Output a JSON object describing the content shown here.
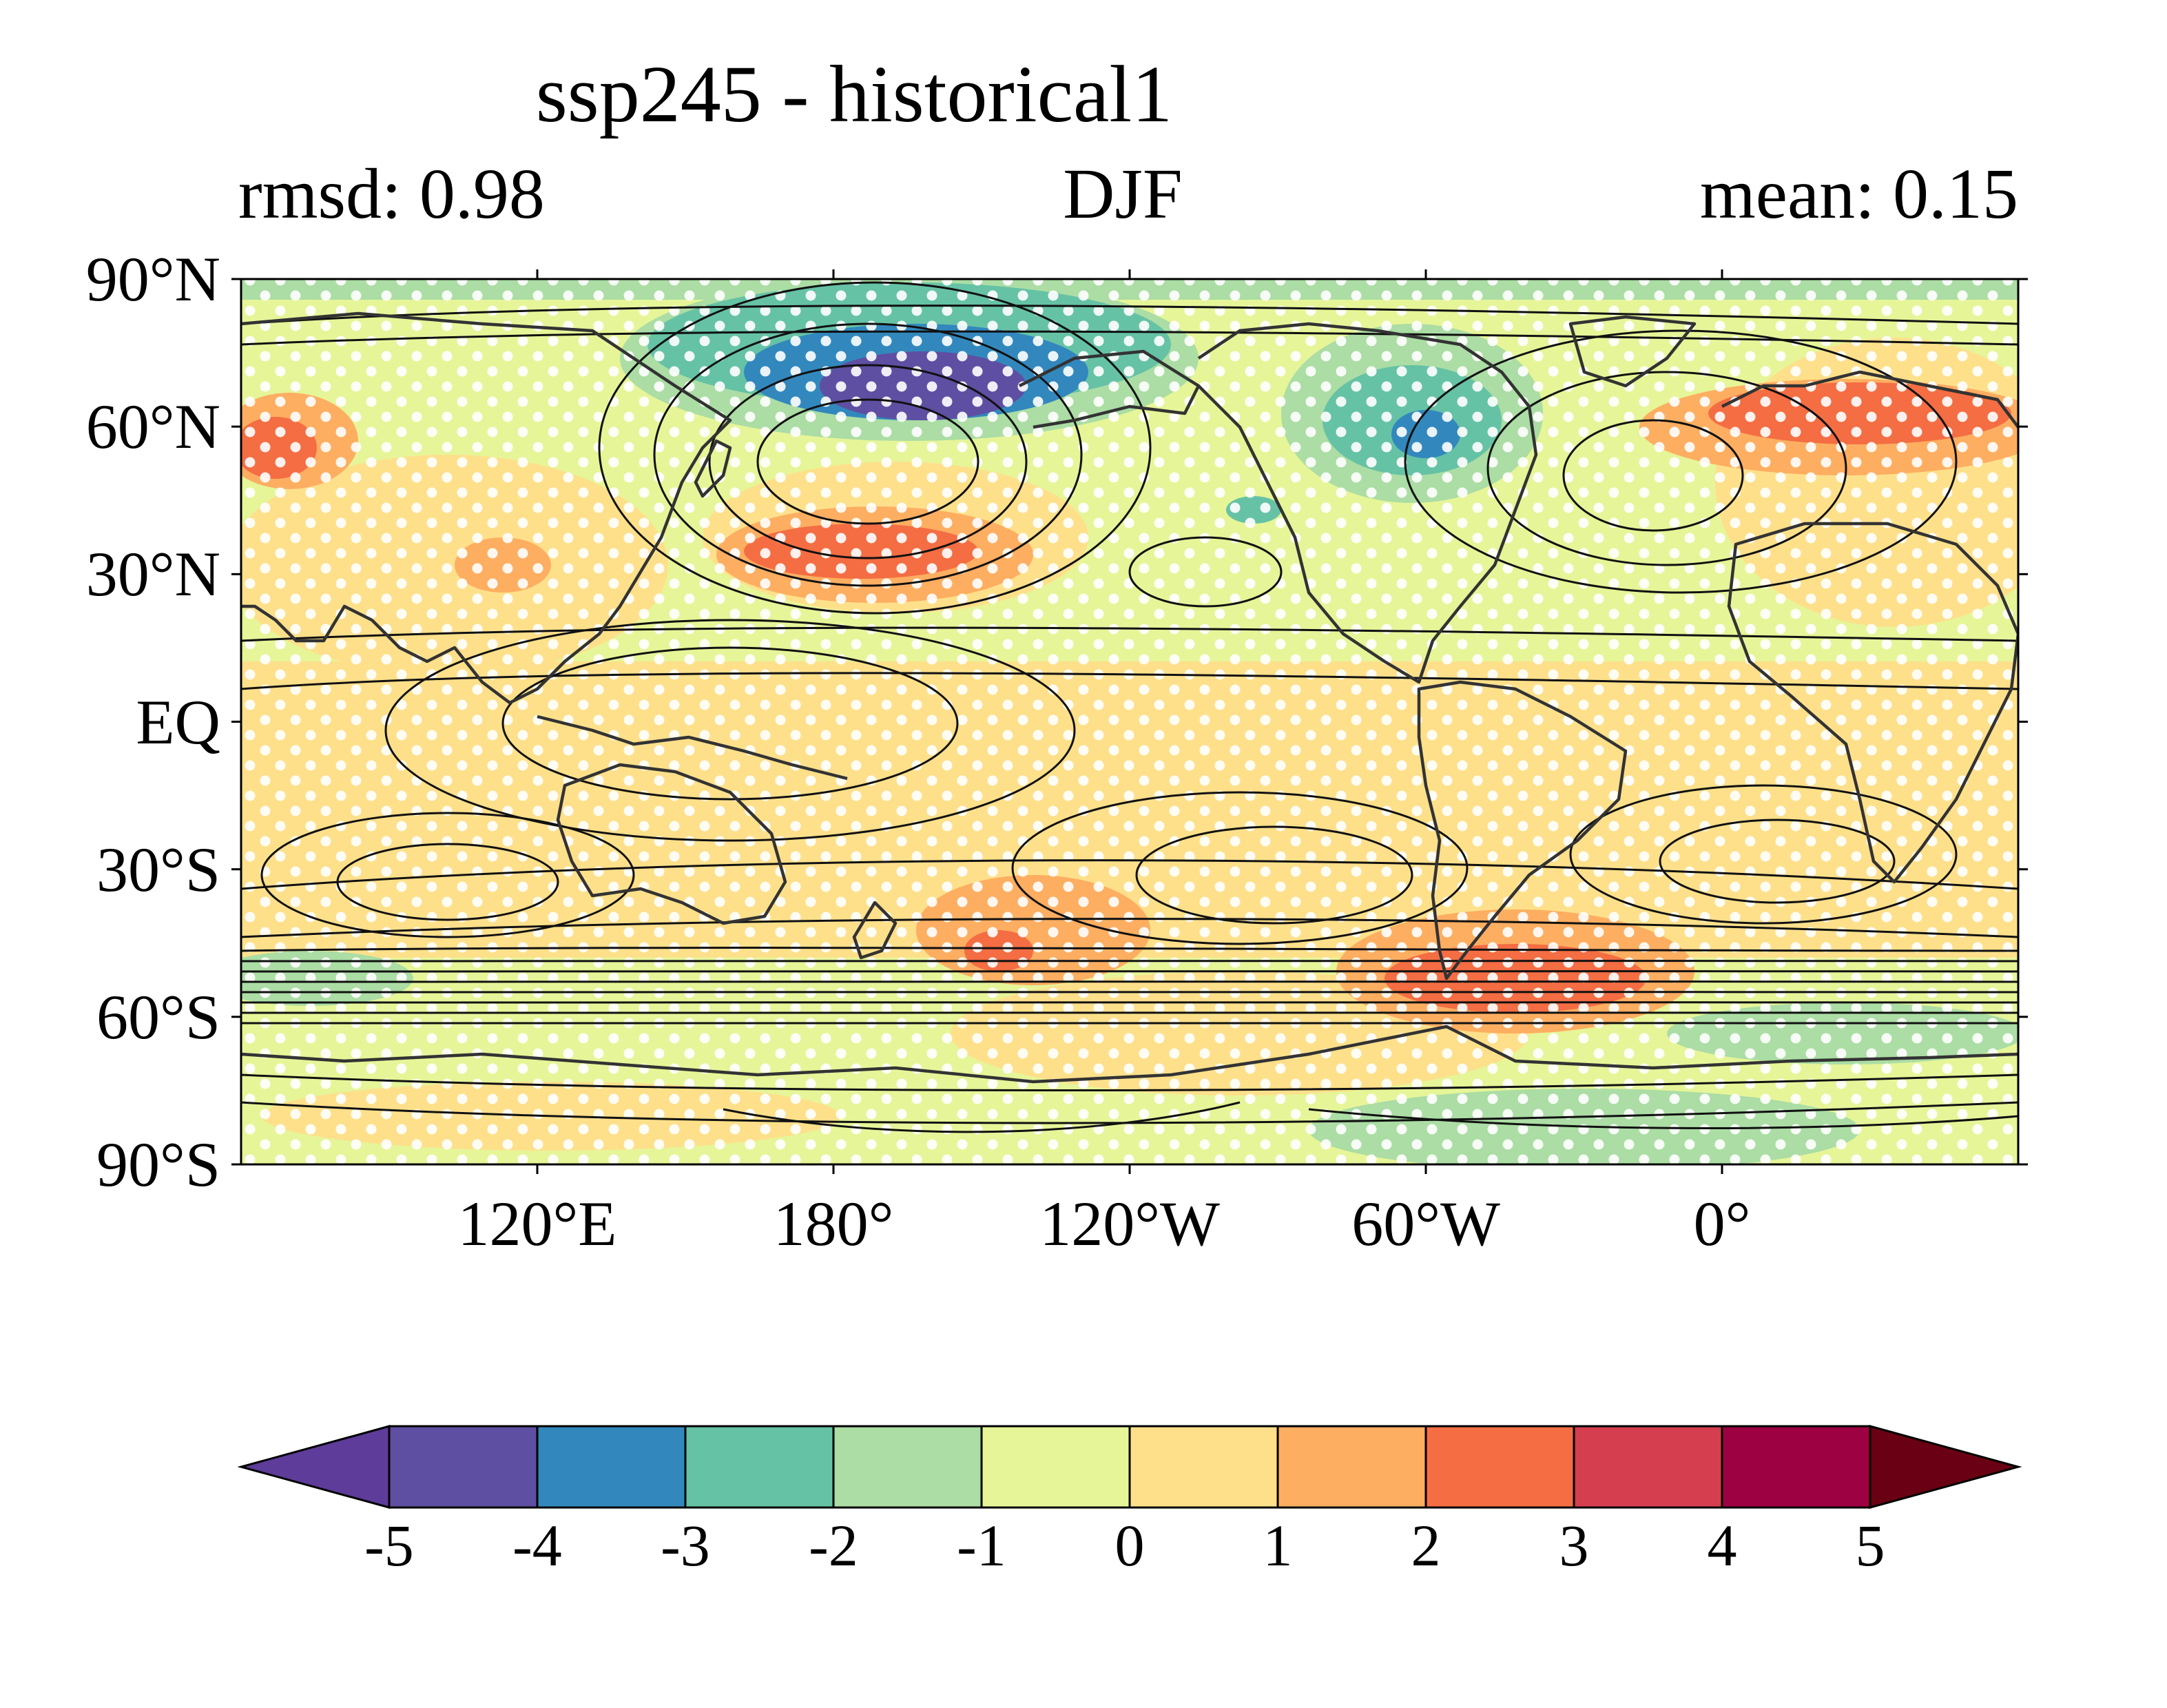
{
  "title": "ssp245 - historical1",
  "subtitle_left": "rmsd: 0.98",
  "subtitle_center": "DJF",
  "subtitle_right": "mean: 0.15",
  "lat_ticks": [
    "90°N",
    "60°N",
    "30°N",
    "EQ",
    "30°S",
    "60°S",
    "90°S"
  ],
  "lat_values": [
    90,
    60,
    30,
    0,
    -30,
    -60,
    -90
  ],
  "lon_ticks": [
    "120°E",
    "180°",
    "120°W",
    "60°W",
    "0°"
  ],
  "lon_values": [
    120,
    180,
    240,
    300,
    360
  ],
  "colorbar": {
    "labels": [
      "-5",
      "-4",
      "-3",
      "-2",
      "-1",
      "0",
      "1",
      "2",
      "3",
      "4",
      "5"
    ],
    "colors": [
      "#5e3c99",
      "#5e4fa2",
      "#3288bd",
      "#66c2a5",
      "#abdda4",
      "#e6f598",
      "#fee08b",
      "#fdae61",
      "#f46d43",
      "#d53e4f",
      "#9e0142",
      "#6a0013"
    ]
  },
  "map_colors": {
    "ocean_base": "#e6f598",
    "land_line": "#333333",
    "contour_line": "#111111",
    "stipple": "#ffffff"
  }
}
